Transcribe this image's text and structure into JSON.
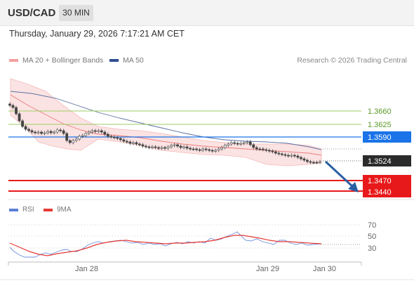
{
  "header": {
    "symbol": "USD/CAD",
    "timeframe": "30 MIN"
  },
  "datetime": "Thursday, January 29, 2026 7:17:21 AM CET",
  "legend": {
    "bollinger": {
      "label": "MA 20 + Bollinger Bands",
      "color": "#f08a8a"
    },
    "ma50": {
      "label": "MA 50",
      "color": "#2f4f8f"
    }
  },
  "credit": "Research © 2026 Trading Central",
  "rsi_legend": {
    "rsi": {
      "label": "RSI",
      "color": "#5b7fd6"
    },
    "ma9": {
      "label": "9MA",
      "color": "#e53935"
    }
  },
  "price_levels": [
    {
      "value": "1.3660",
      "kind": "resistance"
    },
    {
      "value": "1.3625",
      "kind": "resistance"
    },
    {
      "value": "1.3590",
      "kind": "pivot"
    },
    {
      "value": "1.3524",
      "kind": "last"
    },
    {
      "value": "1.3470",
      "kind": "support"
    },
    {
      "value": "1.3440",
      "kind": "support"
    }
  ],
  "rsi_levels": [
    "70",
    "50",
    "30"
  ],
  "x_labels": [
    "Jan 28",
    "Jan 29",
    "Jan 30"
  ],
  "colors": {
    "resistance": "#6aa832",
    "pivot": "#1a73e8",
    "last": "#333333",
    "support": "#e8191b",
    "arrow": "#2b5fa3"
  }
}
